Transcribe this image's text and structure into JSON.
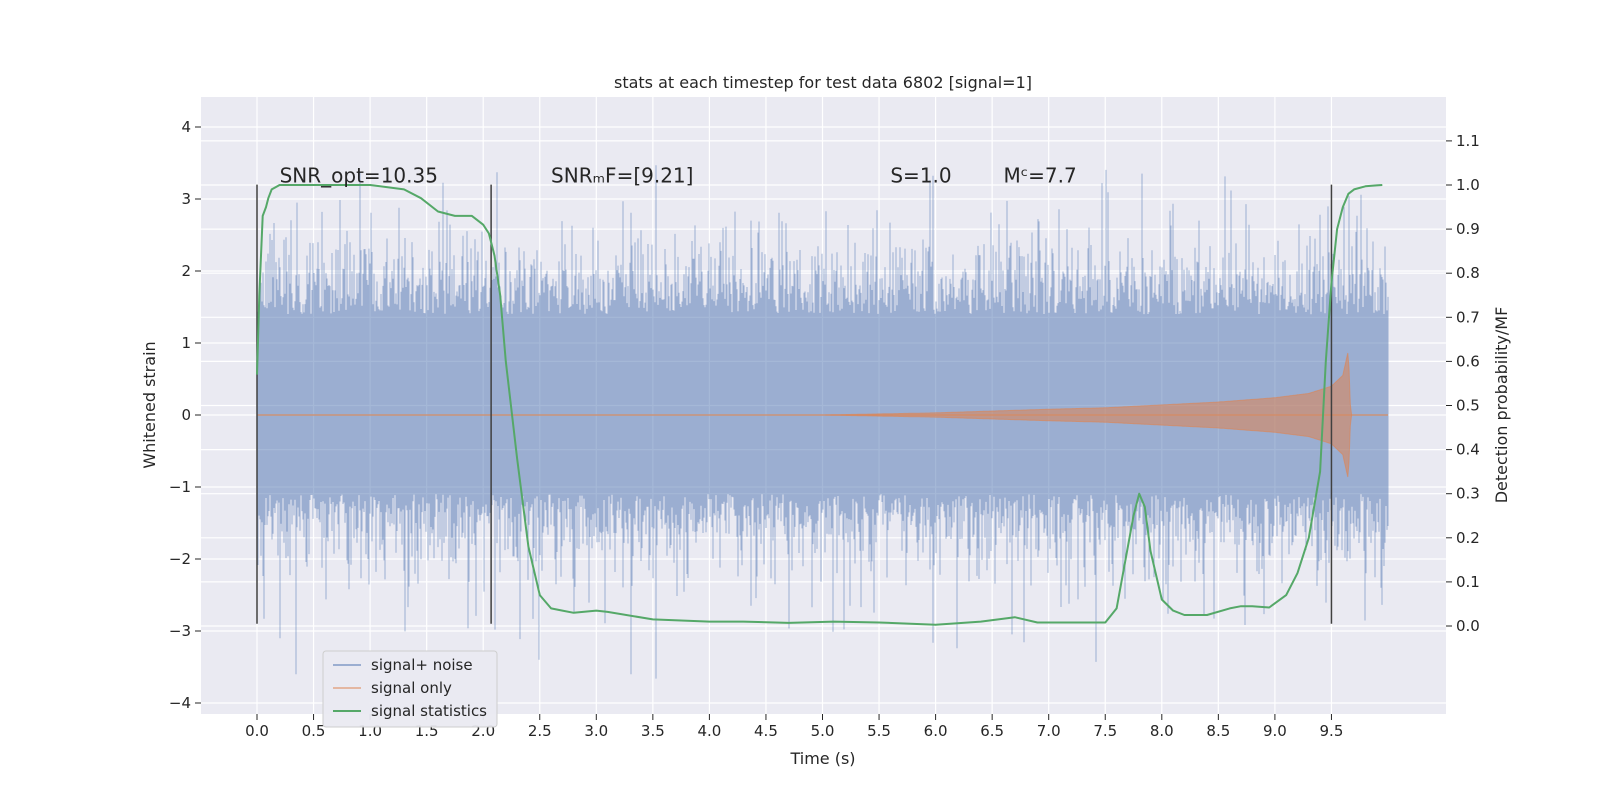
{
  "chart_data": {
    "type": "line",
    "title": "stats at each timestep for test data 6802 [signal=1]",
    "xlabel": "Time (s)",
    "ylabel": "Whitened strain",
    "y2label": "Detection probability/MF",
    "xlim": [
      -0.5,
      10.5
    ],
    "ylim": [
      -4.1,
      4.4
    ],
    "y2lim": [
      -0.2,
      1.19
    ],
    "xticks": [
      0.0,
      0.5,
      1.0,
      1.5,
      2.0,
      2.5,
      3.0,
      3.5,
      4.0,
      4.5,
      5.0,
      5.5,
      6.0,
      6.5,
      7.0,
      7.5,
      8.0,
      8.5,
      9.0,
      9.5
    ],
    "xtick_labels": [
      "0.0",
      "0.5",
      "1.0",
      "1.5",
      "2.0",
      "2.5",
      "3.0",
      "3.5",
      "4.0",
      "4.5",
      "5.0",
      "5.5",
      "6.0",
      "6.5",
      "7.0",
      "7.5",
      "8.0",
      "8.5",
      "9.0",
      "9.5"
    ],
    "yticks": [
      -4,
      -3,
      -2,
      -1,
      0,
      1,
      2,
      3,
      4
    ],
    "ytick_labels": [
      "−4",
      "−3",
      "−2",
      "−1",
      "0",
      "1",
      "2",
      "3",
      "4"
    ],
    "y2ticks": [
      0.0,
      0.1,
      0.2,
      0.3,
      0.4,
      0.5,
      0.6,
      0.7,
      0.8,
      0.9,
      1.0,
      1.1
    ],
    "y2tick_labels": [
      "0.0",
      "0.1",
      "0.2",
      "0.3",
      "0.4",
      "0.5",
      "0.6",
      "0.7",
      "0.8",
      "0.9",
      "1.0",
      "1.1"
    ],
    "grid": true,
    "legend_position": "lower-left",
    "series": [
      {
        "name": "signal+ noise",
        "color": "#4c72b0",
        "axis": "left",
        "x_range": [
          0.0,
          10.0
        ],
        "description_values": "dense noise, mostly within ±1.4 with spikes to about ±3.6"
      },
      {
        "name": "signal only",
        "color": "#dd8452",
        "axis": "left",
        "x_range": [
          0.0,
          10.0
        ],
        "envelope": {
          "x": [
            0.0,
            5.0,
            6.0,
            7.0,
            7.5,
            8.0,
            8.5,
            9.0,
            9.3,
            9.5,
            9.6,
            9.65,
            9.67,
            10.0
          ],
          "amplitude": [
            0.0,
            0.0,
            0.03,
            0.08,
            0.1,
            0.14,
            0.18,
            0.24,
            0.3,
            0.4,
            0.55,
            0.9,
            0.0,
            0.0
          ]
        }
      },
      {
        "name": "signal statistics",
        "color": "#55a868",
        "axis": "right",
        "x": [
          0.0,
          0.02,
          0.05,
          0.08,
          0.1,
          0.13,
          0.2,
          0.3,
          0.5,
          1.0,
          1.3,
          1.45,
          1.6,
          1.75,
          1.9,
          2.0,
          2.05,
          2.1,
          2.15,
          2.2,
          2.3,
          2.4,
          2.5,
          2.6,
          2.7,
          2.8,
          3.0,
          3.1,
          3.5,
          4.0,
          4.3,
          4.7,
          5.1,
          5.5,
          6.0,
          6.4,
          6.7,
          6.9,
          7.5,
          7.6,
          7.7,
          7.75,
          7.8,
          7.85,
          7.9,
          8.0,
          8.1,
          8.2,
          8.4,
          8.6,
          8.7,
          8.8,
          8.95,
          9.1,
          9.2,
          9.3,
          9.4,
          9.45,
          9.5,
          9.55,
          9.6,
          9.65,
          9.7,
          9.8,
          9.9,
          9.95
        ],
        "y": [
          0.57,
          0.75,
          0.93,
          0.95,
          0.97,
          0.99,
          1.0,
          1.0,
          1.0,
          1.0,
          0.99,
          0.97,
          0.94,
          0.93,
          0.93,
          0.91,
          0.89,
          0.84,
          0.75,
          0.6,
          0.38,
          0.18,
          0.07,
          0.04,
          0.035,
          0.03,
          0.035,
          0.032,
          0.015,
          0.01,
          0.01,
          0.007,
          0.01,
          0.008,
          0.003,
          0.01,
          0.02,
          0.008,
          0.008,
          0.04,
          0.18,
          0.25,
          0.3,
          0.27,
          0.17,
          0.06,
          0.035,
          0.025,
          0.025,
          0.04,
          0.045,
          0.045,
          0.042,
          0.07,
          0.12,
          0.2,
          0.35,
          0.6,
          0.78,
          0.9,
          0.95,
          0.98,
          0.99,
          0.997,
          0.999,
          1.0
        ]
      }
    ],
    "vertical_markers": [
      {
        "x": 0.0,
        "y_range": [
          -2.9,
          3.2
        ],
        "color": "#404040"
      },
      {
        "x": 2.07,
        "y_range": [
          -2.9,
          3.2
        ],
        "color": "#404040"
      },
      {
        "x": 9.5,
        "y_range": [
          -2.9,
          3.2
        ],
        "color": "#404040"
      }
    ],
    "annotations": [
      {
        "text": "SNR_opt=10.35",
        "x": 0.2,
        "y": 3.3
      },
      {
        "text": "SNRₘF=[9.21]",
        "x": 2.6,
        "y": 3.3
      },
      {
        "text": "S=1.0",
        "x": 5.6,
        "y": 3.3
      },
      {
        "text": "Mᶜ=7.7",
        "x": 6.6,
        "y": 3.3
      }
    ],
    "legend_entries": [
      "signal+ noise",
      "signal only",
      "signal statistics"
    ]
  }
}
